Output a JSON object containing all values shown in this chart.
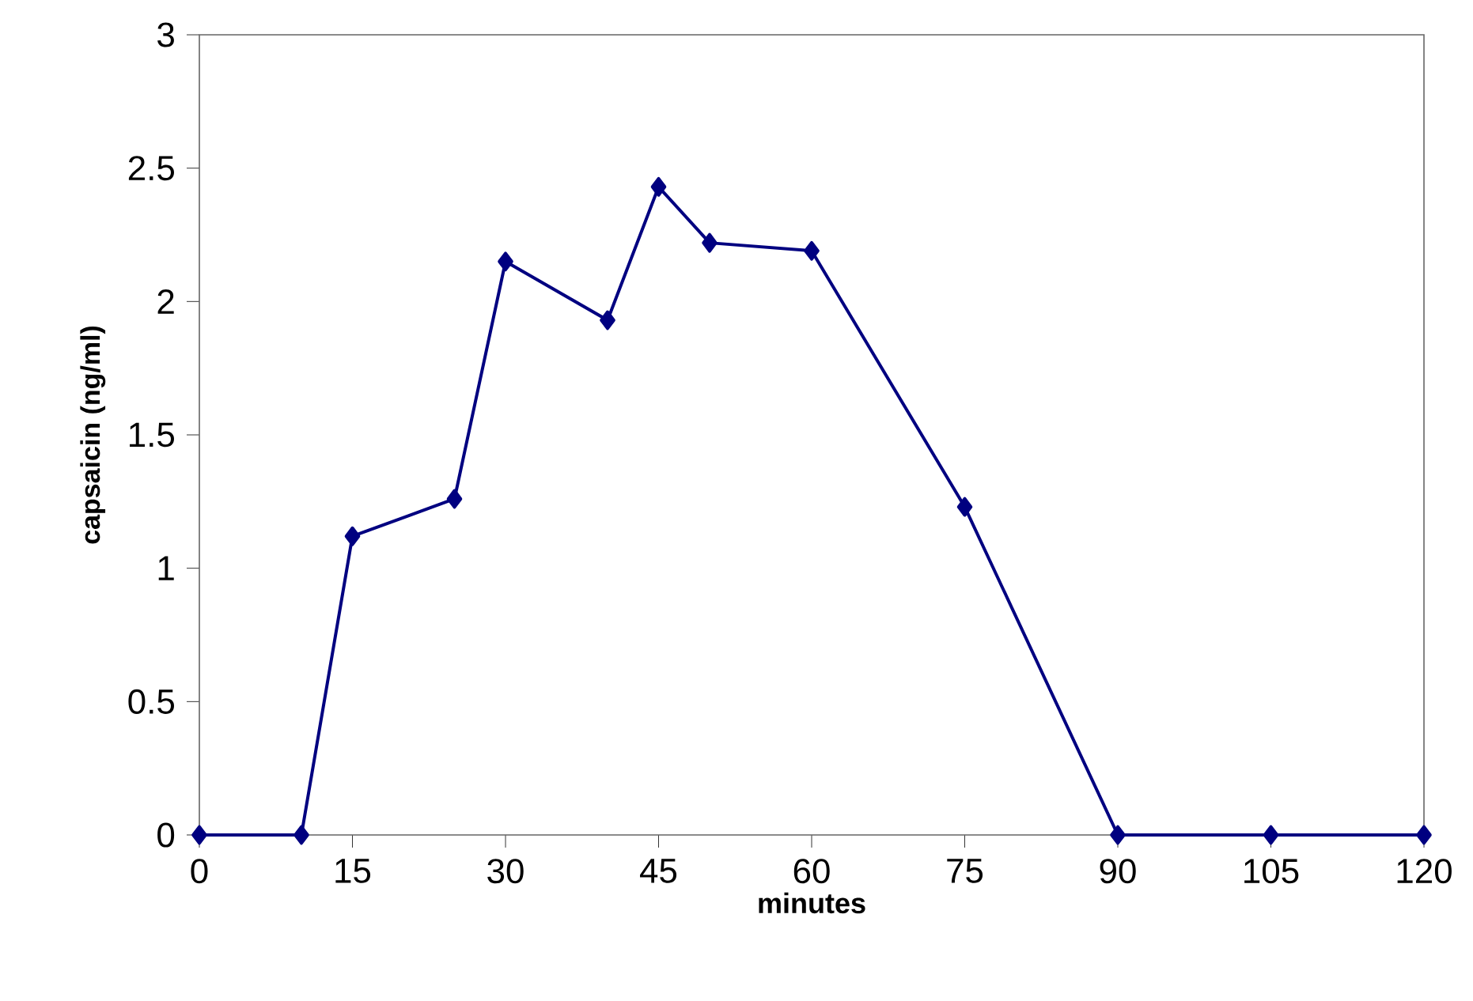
{
  "chart_data": {
    "type": "line",
    "xlabel": "minutes",
    "ylabel": "capsaicin (ng/ml)",
    "x": [
      0,
      10,
      15,
      25,
      30,
      40,
      45,
      50,
      60,
      75,
      90,
      105,
      120
    ],
    "series": [
      {
        "color": "#000080",
        "values": [
          0,
          0,
          1.12,
          1.26,
          2.15,
          1.93,
          2.43,
          2.22,
          2.19,
          1.23,
          0,
          0,
          0
        ]
      }
    ],
    "xlim": [
      0,
      120
    ],
    "xticks": [
      0,
      15,
      30,
      45,
      60,
      75,
      90,
      105,
      120
    ],
    "ylim": [
      0,
      3
    ],
    "yticks": [
      0,
      0.5,
      1,
      1.5,
      2,
      2.5,
      3
    ],
    "marker": "diamond",
    "line_style": "solid"
  }
}
